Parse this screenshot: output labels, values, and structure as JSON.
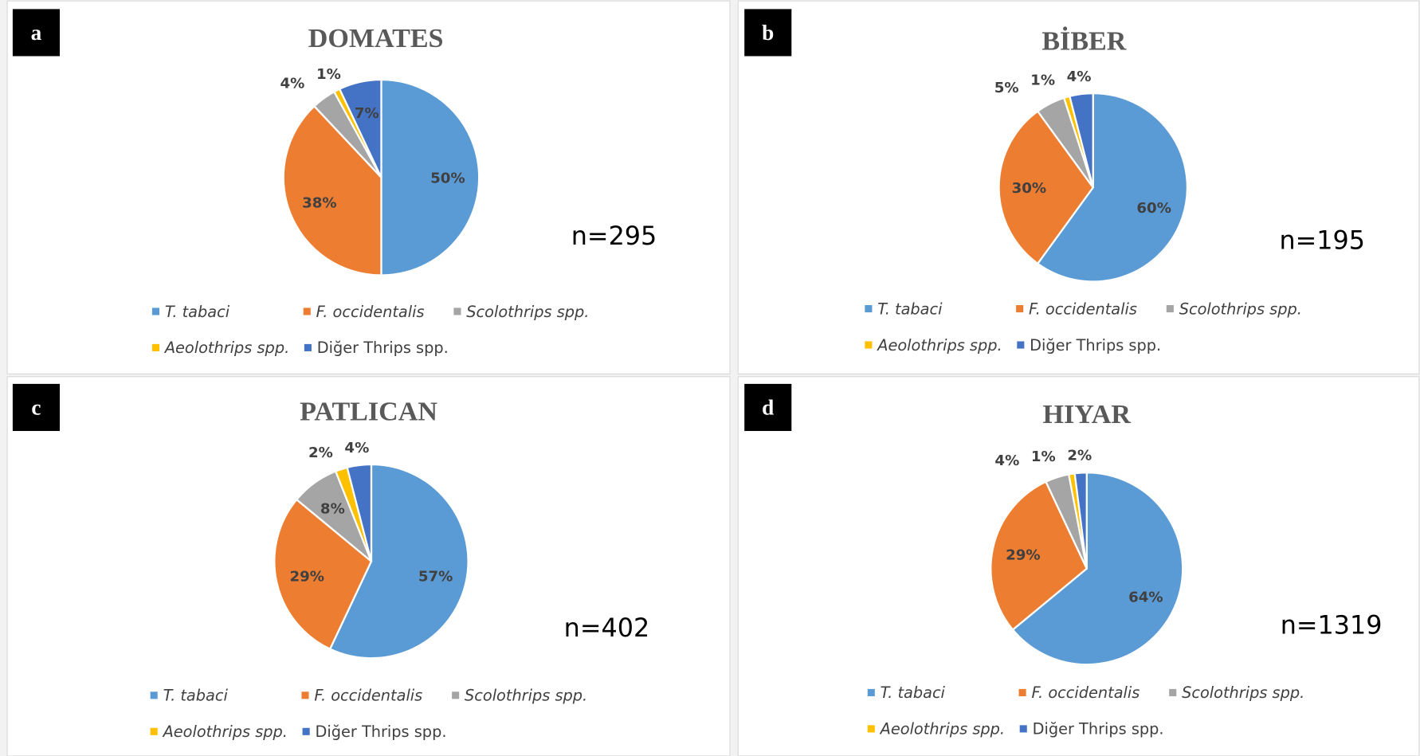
{
  "chart_data": [
    {
      "type": "pie",
      "panel": "a",
      "title": "DOMATES",
      "n_label": "n=295",
      "categories": [
        "T. tabaci",
        "F. occidentalis",
        "Scolothrips spp.",
        "Aeolothrips spp.",
        "Diğer Thrips spp."
      ],
      "values": [
        50,
        38,
        4,
        1,
        7
      ],
      "value_labels": [
        "50%",
        "38%",
        "4%",
        "1%",
        "7%"
      ],
      "colors": [
        "#5b9bd5",
        "#ed7d31",
        "#a5a5a5",
        "#ffc000",
        "#4472c4"
      ]
    },
    {
      "type": "pie",
      "panel": "b",
      "title": "BİBER",
      "n_label": "n=195",
      "categories": [
        "T. tabaci",
        "F. occidentalis",
        "Scolothrips spp.",
        "Aeolothrips spp.",
        "Diğer Thrips spp."
      ],
      "values": [
        60,
        30,
        5,
        1,
        4
      ],
      "value_labels": [
        "60%",
        "30%",
        "5%",
        "1%",
        "4%"
      ],
      "colors": [
        "#5b9bd5",
        "#ed7d31",
        "#a5a5a5",
        "#ffc000",
        "#4472c4"
      ]
    },
    {
      "type": "pie",
      "panel": "c",
      "title": "PATLICAN",
      "n_label": "n=402",
      "categories": [
        "T. tabaci",
        "F. occidentalis",
        "Scolothrips spp.",
        "Aeolothrips spp.",
        "Diğer Thrips spp."
      ],
      "values": [
        57,
        29,
        8,
        2,
        4
      ],
      "value_labels": [
        "57%",
        "29%",
        "8%",
        "2%",
        "4%"
      ],
      "colors": [
        "#5b9bd5",
        "#ed7d31",
        "#a5a5a5",
        "#ffc000",
        "#4472c4"
      ]
    },
    {
      "type": "pie",
      "panel": "d",
      "title": "HIYAR",
      "n_label": "n=1319",
      "categories": [
        "T. tabaci",
        "F. occidentalis",
        "Scolothrips spp.",
        "Aeolothrips spp.",
        "Diğer Thrips spp."
      ],
      "values": [
        64,
        29,
        4,
        1,
        2
      ],
      "value_labels": [
        "64%",
        "29%",
        "4%",
        "1%",
        "2%"
      ],
      "colors": [
        "#5b9bd5",
        "#ed7d31",
        "#a5a5a5",
        "#ffc000",
        "#4472c4"
      ]
    }
  ]
}
